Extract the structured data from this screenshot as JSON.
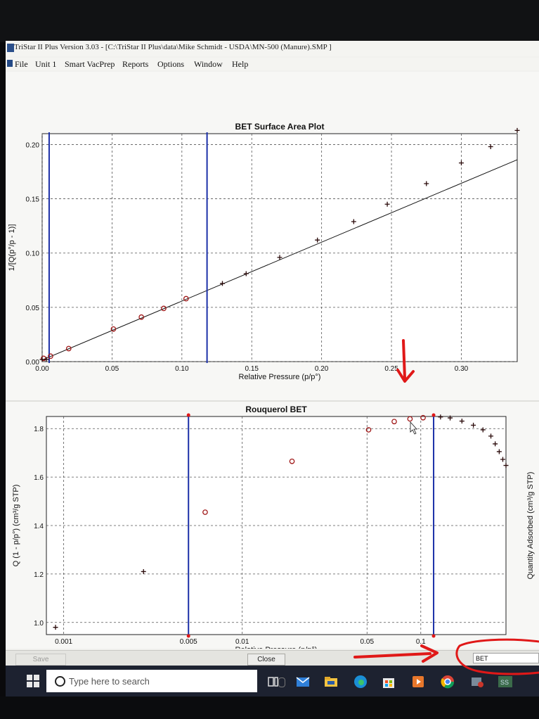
{
  "window": {
    "title": "TriStar II Plus Version 3.03 - [C:\\TriStar II Plus\\data\\Mike Schmidt - USDA\\MN-500 (Manure).SMP ]"
  },
  "menu": {
    "items": [
      "File",
      "Unit 1",
      "Smart VacPrep",
      "Reports",
      "Options",
      "Window",
      "Help"
    ]
  },
  "bottom_bar": {
    "save_label": "Save",
    "close_label": "Close",
    "plot_select_value": "BET"
  },
  "taskbar": {
    "search_placeholder": "Type here to search",
    "icons": [
      "task-view-icon",
      "mail-icon",
      "file-explorer-icon",
      "edge-icon",
      "store-icon",
      "media-player-icon",
      "chrome-icon",
      "app-icon",
      "app-icon-2"
    ]
  },
  "colors": {
    "marker_red": "#a01818",
    "line_blue": "#1c30a8",
    "annotation_red": "#e01818",
    "taskbar_bg": "#1d2230"
  },
  "chart_data": [
    {
      "type": "scatter",
      "title": "BET Surface Area Plot",
      "xlabel": "Relative Pressure (p/p°)",
      "ylabel": "1/[Q(p°/p - 1)]",
      "xlim": [
        0,
        0.34
      ],
      "ylim": [
        0,
        0.21
      ],
      "x_ticks": [
        0.0,
        0.05,
        0.1,
        0.15,
        0.2,
        0.25,
        0.3
      ],
      "x_tick_labels": [
        "0.00",
        "0.05",
        "0.10",
        "0.15",
        "0.20",
        "0.25",
        "0.30"
      ],
      "y_ticks": [
        0.0,
        0.05,
        0.1,
        0.15,
        0.2
      ],
      "y_tick_labels": [
        "0.00",
        "0.05",
        "0.10",
        "0.15",
        "0.20"
      ],
      "grid": true,
      "selected_points": {
        "marker": "circle",
        "x": [
          0.001,
          0.006,
          0.019,
          0.051,
          0.071,
          0.087,
          0.103
        ],
        "y": [
          0.003,
          0.005,
          0.012,
          0.03,
          0.041,
          0.049,
          0.058
        ]
      },
      "excluded_points": {
        "marker": "plus",
        "x": [
          0.0,
          0.003,
          0.129,
          0.146,
          0.17,
          0.197,
          0.223,
          0.247,
          0.275,
          0.3,
          0.321,
          0.34
        ],
        "y": [
          0.002,
          0.002,
          0.072,
          0.081,
          0.096,
          0.112,
          0.129,
          0.145,
          0.164,
          0.183,
          0.198,
          0.213
        ]
      },
      "fit_line": {
        "x": [
          0.0,
          0.34
        ],
        "y": [
          0.0015,
          0.186
        ]
      },
      "range_lines_x": [
        0.005,
        0.118
      ]
    },
    {
      "type": "scatter",
      "title": "Rouquerol BET",
      "xlabel": "Relative Pressure (p/p°)",
      "ylabel": "Q (1 - p/p°) (cm³/g STP)",
      "right_ylabel": "Quantity Adsorbed (cm³/g STP)",
      "x_scale": "log",
      "xlim": [
        0.0008,
        0.3
      ],
      "ylim": [
        0.95,
        1.85
      ],
      "x_ticks": [
        0.001,
        0.005,
        0.01,
        0.05,
        0.1
      ],
      "x_tick_labels": [
        "0.001",
        "0.005",
        "0.01",
        "0.05",
        "0.1"
      ],
      "y_ticks": [
        1.0,
        1.2,
        1.4,
        1.6,
        1.8
      ],
      "y_tick_labels": [
        "1.0",
        "1.2",
        "1.4",
        "1.6",
        "1.8"
      ],
      "grid": true,
      "selected_points": {
        "marker": "circle",
        "x": [
          0.0062,
          0.019,
          0.051,
          0.071,
          0.087,
          0.103
        ],
        "y": [
          1.455,
          1.665,
          1.795,
          1.829,
          1.84,
          1.845
        ]
      },
      "excluded_points": {
        "marker": "plus",
        "x": [
          0.0009,
          0.0028,
          0.129,
          0.146,
          0.17,
          0.197,
          0.223,
          0.247,
          0.261,
          0.275,
          0.288,
          0.3
        ],
        "y": [
          0.98,
          1.21,
          1.848,
          1.844,
          1.831,
          1.814,
          1.795,
          1.769,
          1.737,
          1.705,
          1.673,
          1.648
        ]
      },
      "range_lines_x": [
        0.005,
        0.118
      ]
    }
  ]
}
